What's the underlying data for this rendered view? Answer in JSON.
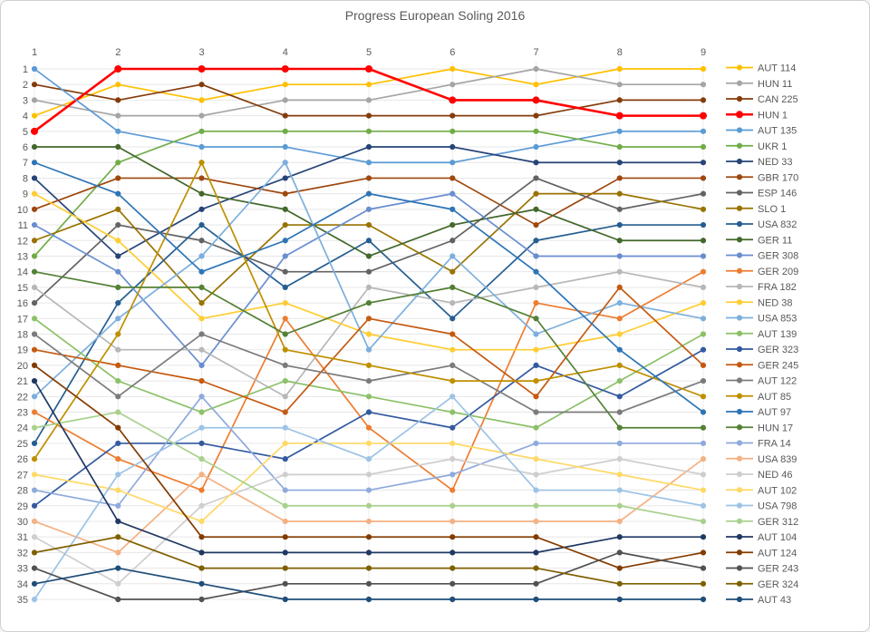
{
  "title": "Progress European Soling 2016",
  "text_color": "#595959",
  "grid_color": "#e7e7e7",
  "column_line_color": "#ececec",
  "chart_data": {
    "type": "line",
    "subtype": "bump-chart",
    "title": "Progress European Soling 2016",
    "xlabel": "",
    "ylabel": "",
    "x": [
      1,
      2,
      3,
      4,
      5,
      6,
      7,
      8,
      9
    ],
    "x_tick_labels": [
      "1",
      "2",
      "3",
      "4",
      "5",
      "6",
      "7",
      "8",
      "9"
    ],
    "x_axis_position": "top",
    "y_axis": {
      "min": 1,
      "max": 35,
      "inverted": true,
      "ticks_every": 1
    },
    "grid": true,
    "legend_position": "right",
    "series": [
      {
        "name": "AUT 114",
        "color": "#FFC000",
        "width": 1.7,
        "positions": [
          4,
          2,
          3,
          2,
          2,
          1,
          2,
          1,
          1
        ]
      },
      {
        "name": "HUN 11",
        "color": "#A5A5A5",
        "width": 1.7,
        "positions": [
          3,
          4,
          4,
          3,
          3,
          2,
          1,
          2,
          2
        ]
      },
      {
        "name": "CAN 225",
        "color": "#843C0C",
        "width": 1.7,
        "positions": [
          2,
          3,
          2,
          4,
          4,
          4,
          4,
          3,
          3
        ]
      },
      {
        "name": "HUN 1",
        "color": "#FF0000",
        "width": 2.6,
        "positions": [
          5,
          1,
          1,
          1,
          1,
          3,
          3,
          4,
          4
        ]
      },
      {
        "name": "AUT 135",
        "color": "#5B9BD5",
        "width": 1.7,
        "positions": [
          1,
          5,
          6,
          6,
          7,
          7,
          6,
          5,
          5
        ]
      },
      {
        "name": "UKR 1",
        "color": "#70AD47",
        "width": 1.7,
        "positions": [
          13,
          7,
          5,
          5,
          5,
          5,
          5,
          6,
          6
        ]
      },
      {
        "name": "NED 33",
        "color": "#264478",
        "width": 1.7,
        "positions": [
          8,
          13,
          10,
          8,
          6,
          6,
          7,
          7,
          7
        ]
      },
      {
        "name": "GBR 170",
        "color": "#9E480E",
        "width": 1.7,
        "positions": [
          10,
          8,
          8,
          9,
          8,
          8,
          11,
          8,
          8
        ]
      },
      {
        "name": "ESP 146",
        "color": "#636363",
        "width": 1.7,
        "positions": [
          16,
          11,
          12,
          14,
          14,
          12,
          8,
          10,
          9
        ]
      },
      {
        "name": "SLO 1",
        "color": "#997300",
        "width": 1.7,
        "positions": [
          12,
          10,
          16,
          11,
          11,
          14,
          9,
          9,
          10
        ]
      },
      {
        "name": "USA 832",
        "color": "#255E91",
        "width": 1.7,
        "positions": [
          25,
          16,
          11,
          15,
          12,
          17,
          12,
          11,
          11
        ]
      },
      {
        "name": "GER 11",
        "color": "#43682B",
        "width": 1.7,
        "positions": [
          6,
          6,
          9,
          10,
          13,
          11,
          10,
          12,
          12
        ]
      },
      {
        "name": "GER 308",
        "color": "#698ED0",
        "width": 1.7,
        "positions": [
          11,
          14,
          20,
          13,
          10,
          9,
          13,
          13,
          13
        ]
      },
      {
        "name": "GER 209",
        "color": "#ED7D31",
        "width": 1.7,
        "positions": [
          23,
          26,
          28,
          17,
          24,
          28,
          16,
          17,
          14
        ]
      },
      {
        "name": "FRA 182",
        "color": "#B7B7B7",
        "width": 1.7,
        "positions": [
          15,
          19,
          19,
          22,
          15,
          16,
          15,
          14,
          15
        ]
      },
      {
        "name": "NED 38",
        "color": "#FFCD33",
        "width": 1.7,
        "positions": [
          9,
          12,
          17,
          16,
          18,
          19,
          19,
          18,
          16
        ]
      },
      {
        "name": "USA 853",
        "color": "#7CAFDD",
        "width": 1.7,
        "positions": [
          22,
          17,
          13,
          7,
          19,
          13,
          18,
          16,
          17
        ]
      },
      {
        "name": "AUT 139",
        "color": "#8CC168",
        "width": 1.7,
        "positions": [
          17,
          21,
          23,
          21,
          22,
          23,
          24,
          21,
          18
        ]
      },
      {
        "name": "GER 323",
        "color": "#335AA1",
        "width": 1.7,
        "positions": [
          29,
          25,
          25,
          26,
          23,
          24,
          20,
          22,
          19
        ]
      },
      {
        "name": "GER 245",
        "color": "#C55A11",
        "width": 1.7,
        "positions": [
          19,
          20,
          21,
          23,
          17,
          18,
          22,
          15,
          20
        ]
      },
      {
        "name": "AUT 122",
        "color": "#7B7B7B",
        "width": 1.7,
        "positions": [
          18,
          22,
          18,
          20,
          21,
          20,
          23,
          23,
          21
        ]
      },
      {
        "name": "AUT 85",
        "color": "#BF8F00",
        "width": 1.7,
        "positions": [
          26,
          18,
          7,
          19,
          20,
          21,
          21,
          20,
          22
        ]
      },
      {
        "name": "AUT 97",
        "color": "#2E75B6",
        "width": 1.7,
        "positions": [
          7,
          9,
          14,
          12,
          9,
          10,
          14,
          19,
          23
        ]
      },
      {
        "name": "HUN 17",
        "color": "#538135",
        "width": 1.7,
        "positions": [
          14,
          15,
          15,
          18,
          16,
          15,
          17,
          24,
          24
        ]
      },
      {
        "name": "FRA 14",
        "color": "#8FAADC",
        "width": 1.7,
        "positions": [
          28,
          29,
          22,
          28,
          28,
          27,
          25,
          25,
          25
        ]
      },
      {
        "name": "USA 839",
        "color": "#F4B183",
        "width": 1.7,
        "positions": [
          30,
          32,
          27,
          30,
          30,
          30,
          30,
          30,
          26
        ]
      },
      {
        "name": "NED 46",
        "color": "#CFCDCD",
        "width": 1.7,
        "positions": [
          31,
          34,
          29,
          27,
          27,
          26,
          27,
          26,
          27
        ]
      },
      {
        "name": "AUT 102",
        "color": "#FFD966",
        "width": 1.7,
        "positions": [
          27,
          28,
          30,
          25,
          25,
          25,
          26,
          27,
          28
        ]
      },
      {
        "name": "USA 798",
        "color": "#9DC3E6",
        "width": 1.7,
        "positions": [
          35,
          27,
          24,
          24,
          26,
          22,
          28,
          28,
          29
        ]
      },
      {
        "name": "GER 312",
        "color": "#A9D18E",
        "width": 1.7,
        "positions": [
          24,
          23,
          26,
          29,
          29,
          29,
          29,
          29,
          30
        ]
      },
      {
        "name": "AUT 104",
        "color": "#203864",
        "width": 1.7,
        "positions": [
          21,
          30,
          32,
          32,
          32,
          32,
          32,
          31,
          31
        ]
      },
      {
        "name": "AUT 124",
        "color": "#833C00",
        "width": 1.7,
        "positions": [
          20,
          24,
          31,
          31,
          31,
          31,
          31,
          33,
          32
        ]
      },
      {
        "name": "GER 243",
        "color": "#525252",
        "width": 1.7,
        "positions": [
          33,
          35,
          35,
          34,
          34,
          34,
          34,
          32,
          33
        ]
      },
      {
        "name": "GER 324",
        "color": "#7F6000",
        "width": 1.7,
        "positions": [
          32,
          31,
          33,
          33,
          33,
          33,
          33,
          34,
          34
        ]
      },
      {
        "name": "AUT 43",
        "color": "#1F4E79",
        "width": 1.7,
        "positions": [
          34,
          33,
          34,
          35,
          35,
          35,
          35,
          35,
          35
        ]
      }
    ]
  }
}
